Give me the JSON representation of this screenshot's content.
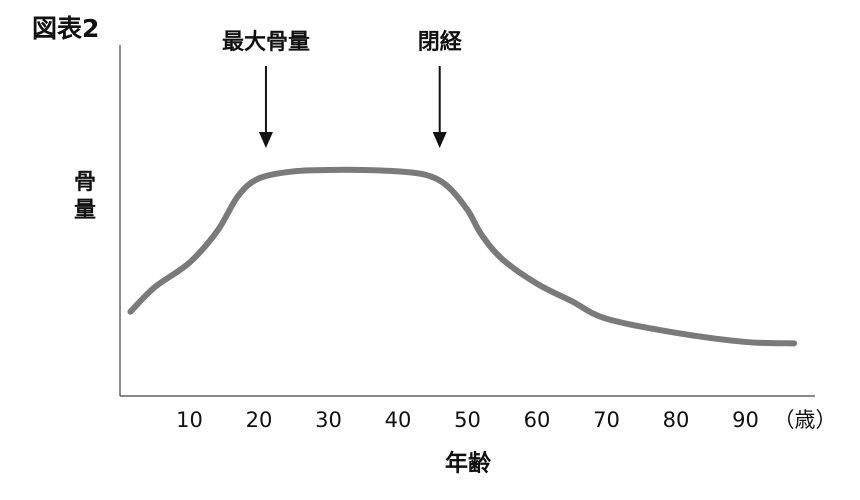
{
  "chart_data": {
    "type": "line",
    "title": "図表2",
    "y_label": "骨量",
    "x_label": "年齢",
    "x_unit": "（歳）",
    "annotations": [
      {
        "text": "最大骨量",
        "x": 21
      },
      {
        "text": "閉経",
        "x": 46
      }
    ],
    "x": [
      1.5,
      5,
      10,
      14,
      17,
      20,
      25,
      30,
      35,
      40,
      44,
      47,
      50,
      52,
      55,
      60,
      65,
      70,
      80,
      90,
      97
    ],
    "series": [
      {
        "color": "#7a7a7a",
        "values": [
          24,
          31,
          38,
          47,
          57,
          62,
          64,
          64.4,
          64.4,
          64,
          63,
          60,
          53,
          46,
          39,
          32,
          27,
          22,
          18,
          15.4,
          15
        ]
      }
    ],
    "xlim": [
      0,
      100
    ],
    "xticks": [
      10,
      20,
      30,
      40,
      50,
      60,
      70,
      80,
      90
    ],
    "ylim": [
      0,
      100
    ]
  }
}
